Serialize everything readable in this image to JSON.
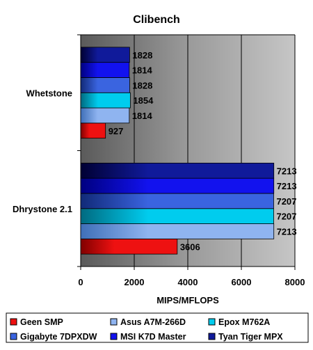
{
  "chart_data": {
    "type": "bar",
    "orientation": "horizontal",
    "title": "Clibench",
    "xlabel": "MIPS/MFLOPS",
    "ylabel": "",
    "xlim": [
      0,
      8000
    ],
    "xticks": [
      0,
      2000,
      4000,
      6000,
      8000
    ],
    "grid": true,
    "legend_position": "bottom",
    "categories": [
      "Whetstone",
      "Dhrystone 2.1"
    ],
    "series": [
      {
        "name": "Geen SMP",
        "values": [
          927,
          3606
        ],
        "color": "#ee1111",
        "dark": "#800000"
      },
      {
        "name": "Asus A7M-266D",
        "values": [
          1814,
          7213
        ],
        "color": "#8fb4f0",
        "dark": "#3f6fb8"
      },
      {
        "name": "Epox M762A",
        "values": [
          1854,
          7207
        ],
        "color": "#00ccee",
        "dark": "#006a80"
      },
      {
        "name": "Gigabyte 7DPXDW",
        "values": [
          1828,
          7207
        ],
        "color": "#3a64e0",
        "dark": "#112a78"
      },
      {
        "name": "MSI K7D Master",
        "values": [
          1814,
          7213
        ],
        "color": "#1212ee",
        "dark": "#000080"
      },
      {
        "name": "Tyan Tiger MPX",
        "values": [
          1828,
          7213
        ],
        "color": "#101a9a",
        "dark": "#000033"
      }
    ]
  }
}
